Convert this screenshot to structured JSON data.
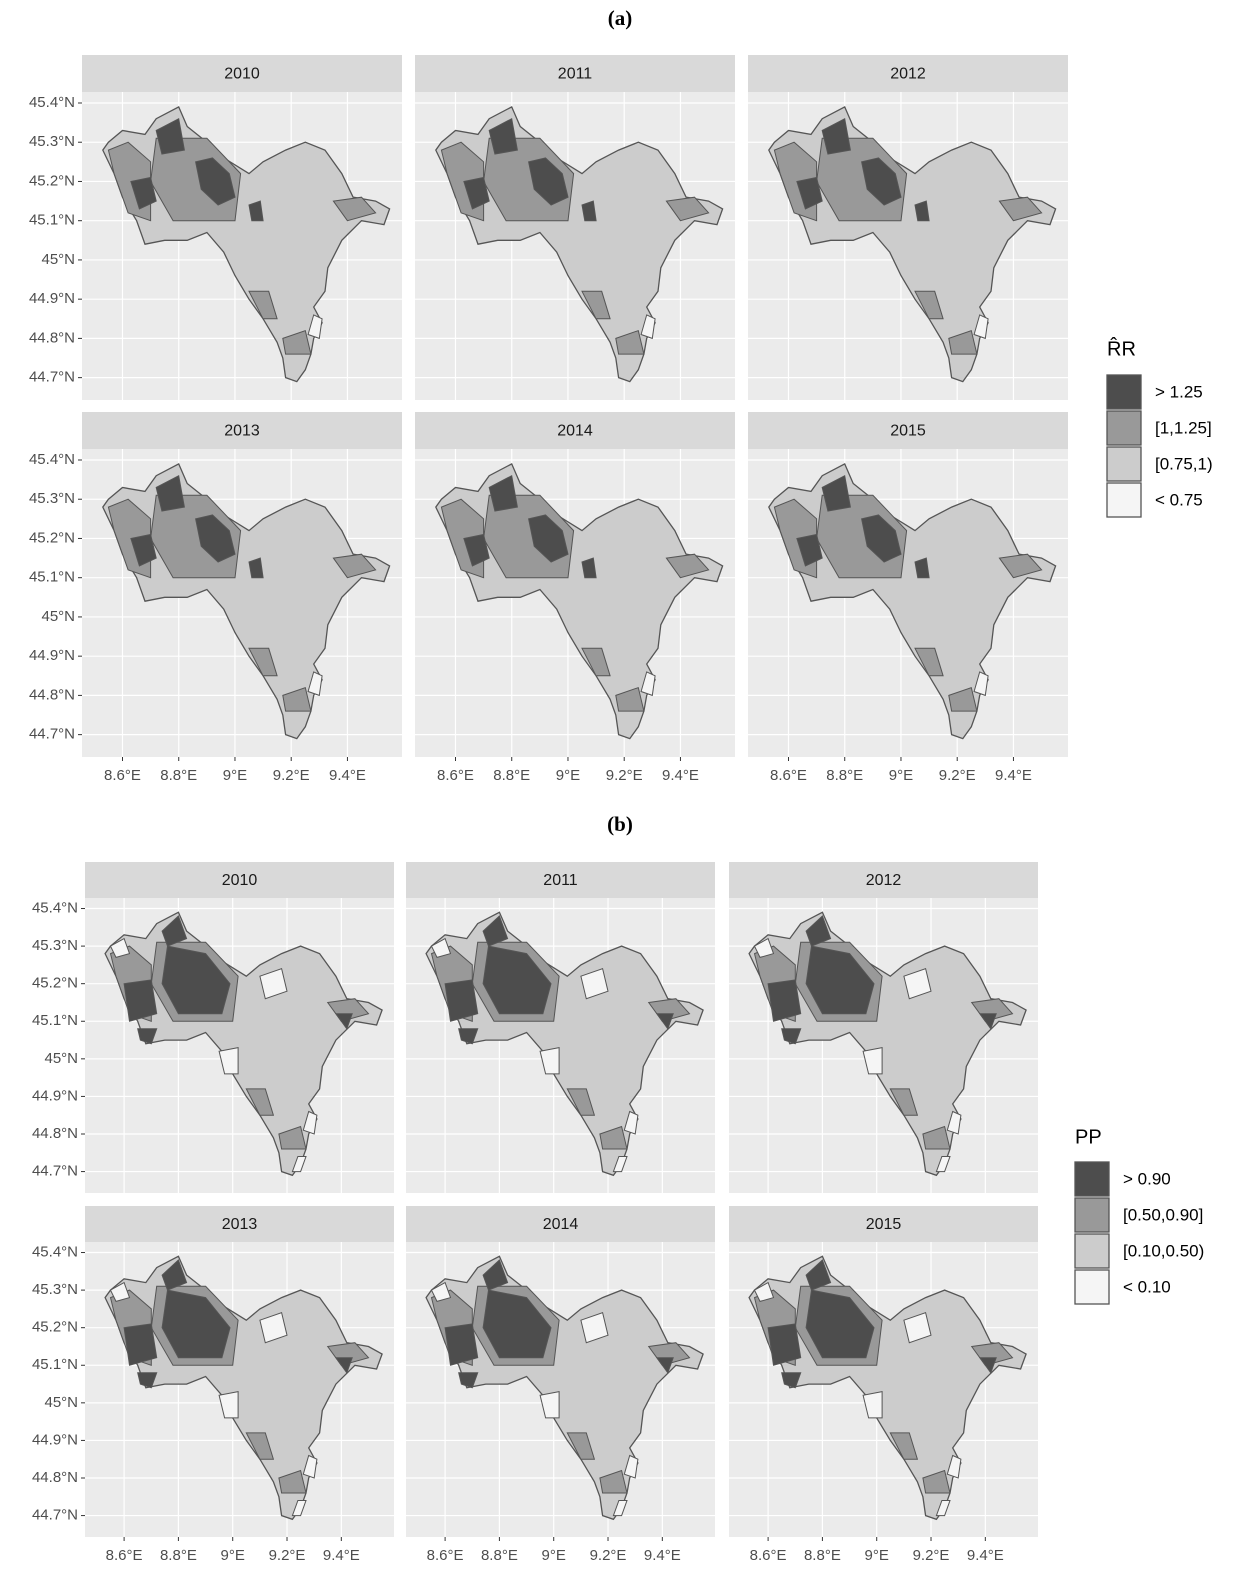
{
  "panels": [
    {
      "label": "(a)",
      "facets": [
        "2010",
        "2011",
        "2012",
        "2013",
        "2014",
        "2015"
      ],
      "xlim": [
        8.456,
        9.594
      ],
      "ylim": [
        44.643,
        45.428
      ],
      "xticks": [
        {
          "value": 8.6,
          "label": "8.6°E"
        },
        {
          "value": 8.8,
          "label": "8.8°E"
        },
        {
          "value": 9,
          "label": "9°E"
        },
        {
          "value": 9.2,
          "label": "9.2°E"
        },
        {
          "value": 9.4,
          "label": "9.4°E"
        }
      ],
      "yticks": [
        {
          "value": 45.4,
          "label": "45.4°N"
        },
        {
          "value": 45.3,
          "label": "45.3°N"
        },
        {
          "value": 45.2,
          "label": "45.2°N"
        },
        {
          "value": 45.1,
          "label": "45.1°N"
        },
        {
          "value": 45,
          "label": "45°N"
        },
        {
          "value": 44.9,
          "label": "44.9°N"
        },
        {
          "value": 44.8,
          "label": "44.8°N"
        },
        {
          "value": 44.7,
          "label": "44.7°N"
        }
      ],
      "legend": {
        "title": "R̂R",
        "items": [
          {
            "label": "> 1.25",
            "color": "#4d4d4d"
          },
          {
            "label": "[1,1.25]",
            "color": "#999999"
          },
          {
            "label": "[0.75,1)",
            "color": "#cccccc"
          },
          {
            "label": "< 0.75",
            "color": "#f5f5f5"
          }
        ]
      }
    },
    {
      "label": "(b)",
      "facets": [
        "2010",
        "2011",
        "2012",
        "2013",
        "2014",
        "2015"
      ],
      "xlim": [
        8.456,
        9.594
      ],
      "ylim": [
        44.643,
        45.428
      ],
      "xticks": [
        {
          "value": 8.6,
          "label": "8.6°E"
        },
        {
          "value": 8.8,
          "label": "8.8°E"
        },
        {
          "value": 9,
          "label": "9°E"
        },
        {
          "value": 9.2,
          "label": "9.2°E"
        },
        {
          "value": 9.4,
          "label": "9.4°E"
        }
      ],
      "yticks": [
        {
          "value": 45.4,
          "label": "45.4°N"
        },
        {
          "value": 45.3,
          "label": "45.3°N"
        },
        {
          "value": 45.2,
          "label": "45.2°N"
        },
        {
          "value": 45.1,
          "label": "45.1°N"
        },
        {
          "value": 45,
          "label": "45°N"
        },
        {
          "value": 44.9,
          "label": "44.9°N"
        },
        {
          "value": 44.8,
          "label": "44.8°N"
        },
        {
          "value": 44.7,
          "label": "44.7°N"
        }
      ],
      "legend": {
        "title": "PP",
        "items": [
          {
            "label": "> 0.90",
            "color": "#4d4d4d"
          },
          {
            "label": "[0.50,0.90]",
            "color": "#999999"
          },
          {
            "label": "[0.10,0.50)",
            "color": "#cccccc"
          },
          {
            "label": "< 0.10",
            "color": "#f5f5f5"
          }
        ]
      }
    }
  ]
}
